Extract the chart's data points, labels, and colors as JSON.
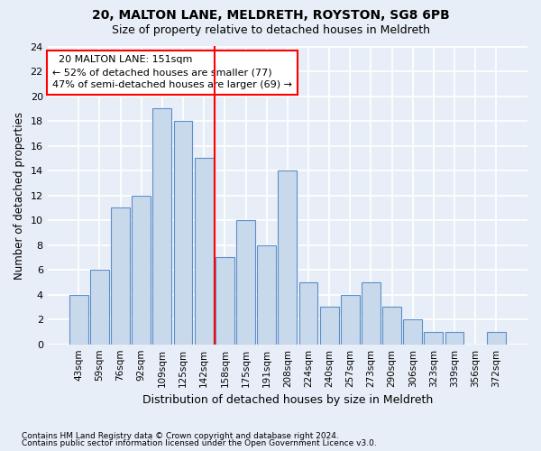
{
  "title1": "20, MALTON LANE, MELDRETH, ROYSTON, SG8 6PB",
  "title2": "Size of property relative to detached houses in Meldreth",
  "xlabel": "Distribution of detached houses by size in Meldreth",
  "ylabel": "Number of detached properties",
  "bin_labels": [
    "43sqm",
    "59sqm",
    "76sqm",
    "92sqm",
    "109sqm",
    "125sqm",
    "142sqm",
    "158sqm",
    "175sqm",
    "191sqm",
    "208sqm",
    "224sqm",
    "240sqm",
    "257sqm",
    "273sqm",
    "290sqm",
    "306sqm",
    "323sqm",
    "339sqm",
    "356sqm",
    "372sqm"
  ],
  "bar_values": [
    4,
    6,
    11,
    12,
    19,
    18,
    15,
    7,
    10,
    8,
    14,
    5,
    3,
    4,
    5,
    3,
    2,
    1,
    1,
    0,
    1
  ],
  "bar_color": "#c9d9ec",
  "bar_edge_color": "#5b8fc9",
  "vline_x": 6.5,
  "vline_color": "red",
  "annotation_text": "  20 MALTON LANE: 151sqm  \n← 52% of detached houses are smaller (77)\n47% of semi-detached houses are larger (69) →",
  "annotation_box_color": "white",
  "annotation_box_edge": "red",
  "ylim": [
    0,
    24
  ],
  "yticks": [
    0,
    2,
    4,
    6,
    8,
    10,
    12,
    14,
    16,
    18,
    20,
    22,
    24
  ],
  "footer1": "Contains HM Land Registry data © Crown copyright and database right 2024.",
  "footer2": "Contains public sector information licensed under the Open Government Licence v3.0.",
  "bg_color": "#e8eef7",
  "plot_bg_color": "#e8eef7",
  "grid_color": "white"
}
